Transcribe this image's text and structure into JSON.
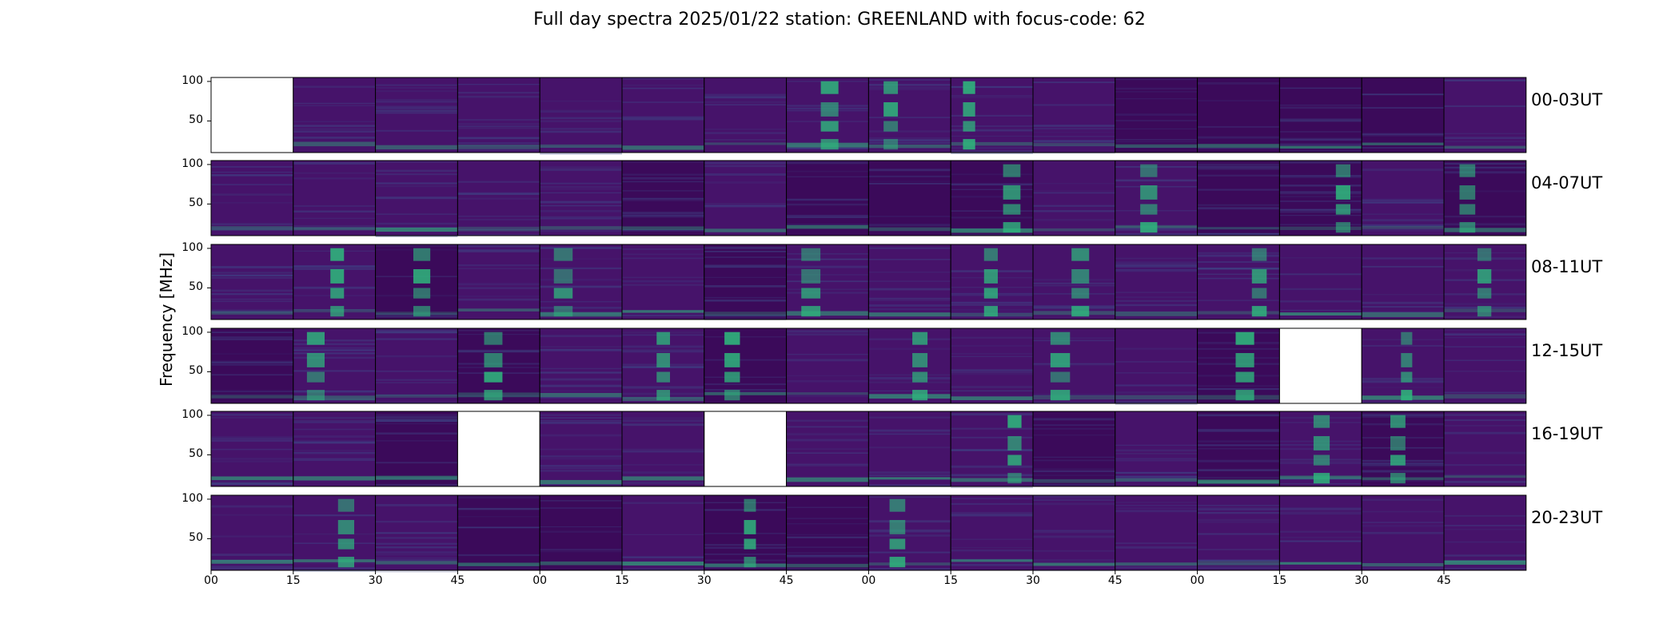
{
  "chart_data": {
    "type": "heatmap",
    "title": "Full day spectra 2025/01/22 station: GREENLAND with focus-code: 62",
    "ylabel": "Frequency [MHz]",
    "xlabel": "",
    "y_ticks": [
      "50",
      "100"
    ],
    "ylim": [
      10,
      105
    ],
    "x_ticks": [
      "00",
      "15",
      "30",
      "45",
      "00",
      "15",
      "30",
      "45",
      "00",
      "15",
      "30",
      "45",
      "00",
      "15",
      "30",
      "45"
    ],
    "rows": [
      {
        "label": "00-03UT",
        "missing_panels": [
          0
        ],
        "burst_panels": [
          7,
          8,
          9
        ]
      },
      {
        "label": "04-07UT",
        "missing_panels": [],
        "burst_panels": [
          9,
          11,
          13,
          15
        ]
      },
      {
        "label": "08-11UT",
        "missing_panels": [],
        "burst_panels": [
          1,
          2,
          4,
          7,
          9,
          10,
          12,
          15
        ]
      },
      {
        "label": "12-15UT",
        "missing_panels": [
          13
        ],
        "burst_panels": [
          1,
          3,
          5,
          6,
          8,
          10,
          12,
          14
        ]
      },
      {
        "label": "16-19UT",
        "missing_panels": [
          3,
          6
        ],
        "burst_panels": [
          9,
          13,
          14
        ]
      },
      {
        "label": "20-23UT",
        "missing_panels": [],
        "burst_panels": [
          1,
          6,
          8
        ]
      }
    ],
    "panels_per_row": 16,
    "panel_duration_minutes": 15,
    "colormap": "viridis",
    "colors": {
      "background": "#46136a",
      "dark": "#3b0a5a",
      "mid": "#3e4a89",
      "bright": "#2fb47c",
      "peak": "#8bd646",
      "missing": "#ffffff"
    }
  }
}
